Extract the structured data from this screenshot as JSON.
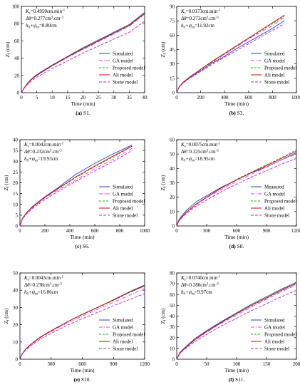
{
  "legend_styles": {
    "Simulated": {
      "color": "#1f3fbf",
      "dash": ""
    },
    "Measured": {
      "color": "#1f3fbf",
      "dash": ""
    },
    "GA model": {
      "color": "#e040e0",
      "dash": "5,2,1,2"
    },
    "Proposed model": {
      "color": "#20a020",
      "dash": "3,2"
    },
    "Ali model": {
      "color": "#e00000",
      "dash": ""
    },
    "Stone model": {
      "color": "#c020c0",
      "dash": "4,2"
    }
  },
  "chart_data": [
    {
      "type": "line",
      "caption_id": "(a)",
      "caption_text": " S1.",
      "xlabel": "Time (min)",
      "ylabel": "Zf (cm)",
      "xlim": [
        0,
        40
      ],
      "ylim": [
        0,
        100
      ],
      "xticks": [
        0,
        5,
        10,
        15,
        20,
        25,
        30,
        35,
        40
      ],
      "yticks": [
        0,
        20,
        40,
        60,
        80,
        100
      ],
      "params": [
        "Ks=0.4950cm.min-1",
        "Δθ=0.277cm3.cm-3",
        "h0+ψm=8.80cm"
      ],
      "legend": [
        "Simulated",
        "GA model",
        "Proposed model",
        "Ali model",
        "Stone model"
      ],
      "x": [
        0,
        1,
        2,
        3,
        5,
        10,
        15,
        20,
        25,
        30,
        35,
        40
      ],
      "series": [
        {
          "name": "Simulated",
          "values": [
            0,
            6,
            11,
            15,
            21,
            32,
            42,
            52,
            61,
            70,
            79,
            93
          ]
        },
        {
          "name": "GA model",
          "values": [
            0,
            6,
            10.5,
            14.5,
            20,
            31,
            41,
            50,
            59,
            68,
            77,
            91
          ]
        },
        {
          "name": "Proposed model",
          "values": [
            0,
            6,
            10.5,
            14.5,
            20,
            31,
            41,
            50.5,
            59.5,
            68.5,
            77.5,
            91
          ]
        },
        {
          "name": "Ali model",
          "values": [
            0,
            6,
            10.5,
            14.5,
            20,
            31.5,
            41.5,
            51,
            60,
            69,
            78,
            92
          ]
        },
        {
          "name": "Stone model",
          "values": [
            0,
            5.5,
            9.5,
            13,
            18,
            28,
            37,
            46,
            54,
            62,
            70,
            83
          ]
        }
      ]
    },
    {
      "type": "line",
      "caption_id": "(b)",
      "caption_text": " S3.",
      "xlabel": "Time (min)",
      "ylabel": "Zf (cm)",
      "xlim": [
        0,
        1000
      ],
      "ylim": [
        0,
        90
      ],
      "xticks": [
        0,
        200,
        400,
        600,
        800,
        1000
      ],
      "yticks": [
        0,
        15,
        30,
        45,
        60,
        75,
        90
      ],
      "params": [
        "Ks=0.0173cm.min-1",
        "Δθ=0.273cm3.cm-3",
        "h0+ψm=11.92cm"
      ],
      "legend": [
        "Simulated",
        "GA model",
        "Proposed model",
        "Ali model",
        "Stone model"
      ],
      "x": [
        0,
        20,
        50,
        100,
        200,
        300,
        400,
        500,
        600,
        700,
        800,
        900
      ],
      "series": [
        {
          "name": "Simulated",
          "values": [
            0,
            6,
            10,
            15,
            23,
            31,
            38,
            46,
            53,
            60,
            67,
            75
          ]
        },
        {
          "name": "GA model",
          "values": [
            0,
            6,
            10.5,
            15.5,
            24,
            32,
            40,
            48,
            56,
            63,
            70,
            79
          ]
        },
        {
          "name": "Proposed model",
          "values": [
            0,
            6,
            10.5,
            15.5,
            24,
            32.5,
            40.5,
            48.5,
            56.5,
            64,
            72,
            80
          ]
        },
        {
          "name": "Ali model",
          "values": [
            0,
            6,
            10.5,
            15.5,
            24.5,
            33,
            41,
            49,
            57,
            65,
            73,
            81
          ]
        },
        {
          "name": "Stone model",
          "values": [
            0,
            5.5,
            9.5,
            14.5,
            22,
            29.5,
            37,
            44,
            51,
            58,
            65,
            72
          ]
        }
      ]
    },
    {
      "type": "line",
      "caption_id": "(c)",
      "caption_text": " S6.",
      "xlabel": "Time (min)",
      "ylabel": "Zf (cm)",
      "xlim": [
        0,
        1000
      ],
      "ylim": [
        0,
        40
      ],
      "xticks": [
        0,
        200,
        400,
        600,
        800,
        1000
      ],
      "yticks": [
        0,
        5,
        10,
        15,
        20,
        25,
        30,
        35,
        40
      ],
      "params": [
        "Ks=0.0042cm.min-1",
        "Δθ=0.232cm3.cm-3",
        "h0+ψm=19.93cm"
      ],
      "legend": [
        "Simulated",
        "GA model",
        "Proposed model",
        "Ali model",
        "Stone model"
      ],
      "x": [
        0,
        20,
        50,
        100,
        200,
        300,
        450,
        600,
        750,
        900
      ],
      "series": [
        {
          "name": "Simulated",
          "values": [
            0,
            3.5,
            6,
            9,
            13.5,
            17.5,
            24,
            29,
            33.5,
            37.5
          ]
        },
        {
          "name": "GA model",
          "values": [
            0,
            3.5,
            5.8,
            8.5,
            13,
            16.5,
            21.5,
            26.5,
            31,
            36
          ]
        },
        {
          "name": "Proposed model",
          "values": [
            0,
            3.5,
            5.9,
            8.8,
            13.2,
            17,
            22.5,
            27.5,
            32,
            37
          ]
        },
        {
          "name": "Ali model",
          "values": [
            0,
            3.5,
            5.9,
            8.8,
            13.3,
            17.2,
            22.8,
            27.8,
            32.5,
            37
          ]
        },
        {
          "name": "Stone model",
          "values": [
            0,
            3.2,
            5.4,
            8.1,
            12.2,
            15.8,
            20.8,
            25.5,
            30,
            35
          ]
        }
      ]
    },
    {
      "type": "line",
      "caption_id": "(d)",
      "caption_text": " S8.",
      "xlabel": "Time (min)",
      "ylabel": "Zf (cm)",
      "xlim": [
        0,
        1200
      ],
      "ylim": [
        0,
        60
      ],
      "xticks": [
        0,
        300,
        600,
        900,
        1200
      ],
      "yticks": [
        0,
        10,
        20,
        30,
        40,
        50,
        60
      ],
      "params": [
        "Ks=0.0075cm.min-1",
        "Δθ=0.325cm3.cm-3",
        "h0+ψm=18.95cm"
      ],
      "legend": [
        "Measured",
        "GA model",
        "Proposed model",
        "Ali model",
        "Stone model"
      ],
      "x": [
        0,
        20,
        50,
        100,
        200,
        300,
        450,
        600,
        750,
        900,
        1050,
        1200
      ],
      "series": [
        {
          "name": "Measured",
          "values": [
            0,
            4,
            7,
            11,
            17,
            21,
            27,
            32,
            37,
            41,
            46,
            51
          ]
        },
        {
          "name": "GA model",
          "values": [
            0,
            3.5,
            6,
            9.5,
            15,
            19.5,
            25.5,
            31,
            36,
            41,
            46,
            50
          ]
        },
        {
          "name": "Proposed model",
          "values": [
            0,
            3.5,
            6.2,
            9.8,
            15.5,
            20,
            26.5,
            32.5,
            37.5,
            42.5,
            47.5,
            53
          ]
        },
        {
          "name": "Ali model",
          "values": [
            0,
            3.5,
            6.2,
            9.8,
            15.5,
            20,
            26.5,
            32,
            37.2,
            42,
            47,
            52
          ]
        },
        {
          "name": "Stone model",
          "values": [
            0,
            3.2,
            5.6,
            8.8,
            14,
            18,
            24,
            29,
            34,
            38.5,
            43,
            47
          ]
        }
      ]
    },
    {
      "type": "line",
      "caption_id": "(e)",
      "caption_text": " S10.",
      "xlabel": "Time (min)",
      "ylabel": "Zf (cm)",
      "xlim": [
        0,
        1200
      ],
      "ylim": [
        0,
        50
      ],
      "xticks": [
        0,
        300,
        600,
        900,
        1200
      ],
      "yticks": [
        0,
        10,
        20,
        30,
        40,
        50
      ],
      "params": [
        "Ks=0.0043cm.min-1",
        "Δθ=0.238cm3.cm-3",
        "h0+ψm=16.86cm"
      ],
      "legend": [
        "Simulated",
        "GA model",
        "Proposed model",
        "Ali model",
        "Stone model"
      ],
      "x": [
        0,
        20,
        50,
        100,
        200,
        300,
        450,
        600,
        750,
        900,
        1050,
        1200
      ],
      "series": [
        {
          "name": "Simulated",
          "values": [
            0,
            3,
            5.5,
            8.5,
            13,
            16.5,
            21.5,
            26,
            30,
            34.5,
            39,
            43
          ]
        },
        {
          "name": "GA model",
          "values": [
            0,
            3,
            5.3,
            8.2,
            12.6,
            16,
            20.8,
            25,
            29,
            33,
            37,
            41
          ]
        },
        {
          "name": "Proposed model",
          "values": [
            0,
            3,
            5.4,
            8.4,
            12.8,
            16.4,
            21.4,
            25.8,
            30,
            34,
            38.5,
            42.5
          ]
        },
        {
          "name": "Ali model",
          "values": [
            0,
            3,
            5.4,
            8.4,
            12.9,
            16.5,
            21.5,
            26,
            30.2,
            34.3,
            38.8,
            42.5
          ]
        },
        {
          "name": "Stone model",
          "values": [
            0,
            2.8,
            5,
            7.7,
            11.8,
            15,
            19.5,
            23.5,
            27.2,
            31,
            34.5,
            38
          ]
        }
      ]
    },
    {
      "type": "line",
      "caption_id": "(f)",
      "caption_text": " S11.",
      "xlabel": "Time (min)",
      "ylabel": "Zf (cm)",
      "xlim": [
        0,
        200
      ],
      "ylim": [
        0,
        80
      ],
      "xticks": [
        0,
        50,
        100,
        150,
        200
      ],
      "yticks": [
        0,
        10,
        20,
        30,
        40,
        50,
        60,
        70,
        80
      ],
      "params": [
        "Ks=0.0740cm.min-1",
        "Δθ=0.288cm3.cm-3",
        "h0+ψm=9.97cm"
      ],
      "legend": [
        "Simulated",
        "GA model",
        "Proposed model",
        "Ali model",
        "Stone model"
      ],
      "x": [
        0,
        5,
        10,
        20,
        30,
        50,
        75,
        100,
        125,
        150,
        175,
        200
      ],
      "series": [
        {
          "name": "Simulated",
          "values": [
            0,
            6,
            9,
            14,
            19,
            26.5,
            35,
            43,
            51,
            58,
            65,
            71.5
          ]
        },
        {
          "name": "GA model",
          "values": [
            0,
            5.5,
            8.5,
            13,
            17.5,
            25,
            33.5,
            41,
            48.5,
            55.5,
            62.5,
            69
          ]
        },
        {
          "name": "Proposed model",
          "values": [
            0,
            5.5,
            8.5,
            13.2,
            17.8,
            25.5,
            34,
            42,
            49.5,
            56.5,
            63.5,
            70
          ]
        },
        {
          "name": "Ali model",
          "values": [
            0,
            5.5,
            8.5,
            13.3,
            18,
            25.8,
            34.3,
            42.3,
            50,
            57,
            64,
            70.5
          ]
        },
        {
          "name": "Stone model",
          "values": [
            0,
            5,
            7.8,
            12,
            16.2,
            23,
            31,
            38,
            45,
            51.5,
            58,
            64
          ]
        }
      ]
    }
  ]
}
